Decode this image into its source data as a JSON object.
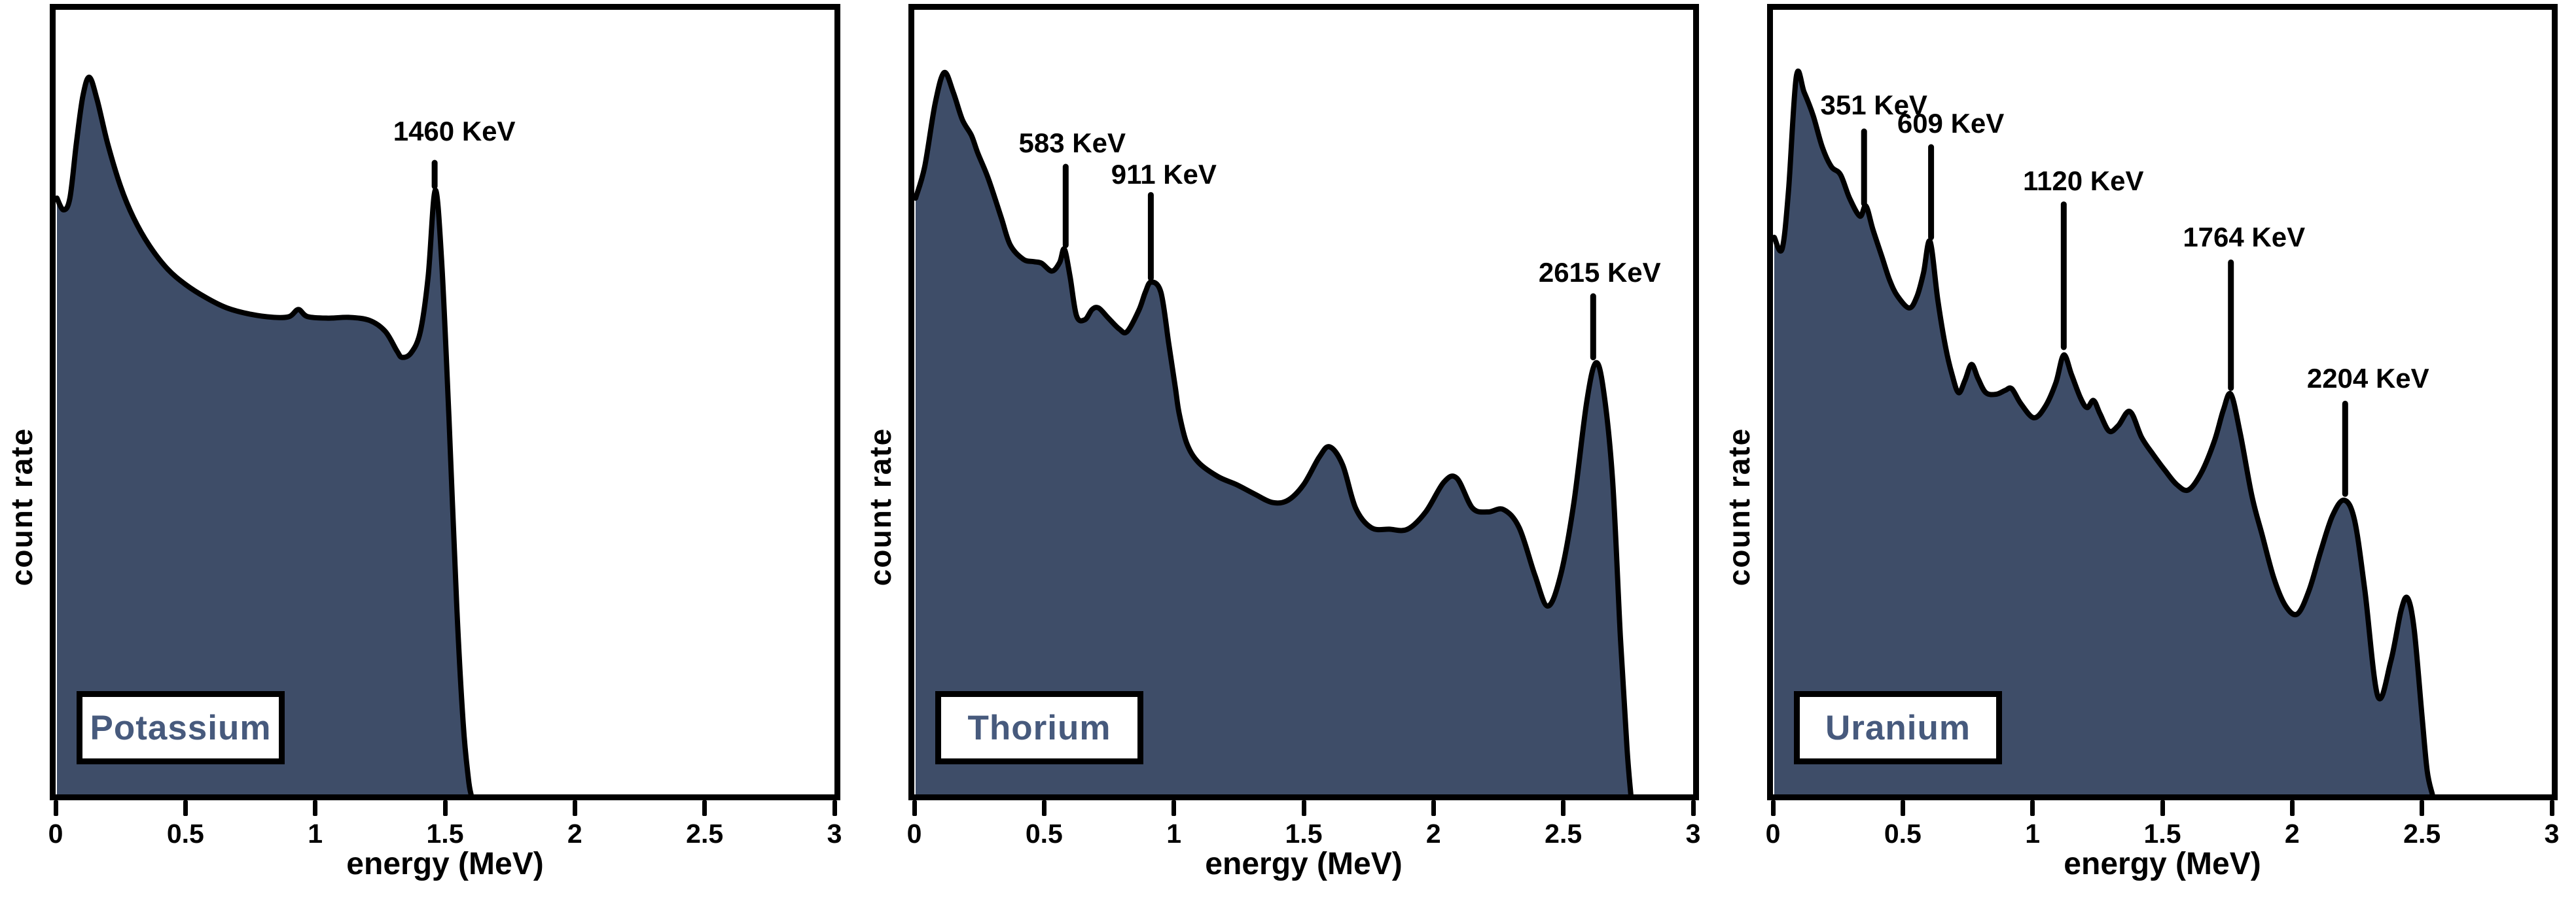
{
  "figure": {
    "colors": {
      "fill": "#3E4D68",
      "outline": "#000000",
      "legend_text": "#475A7D",
      "axis": "#000000"
    },
    "x_tick_labels": [
      "0",
      "0.5",
      "1",
      "1.5",
      "2",
      "2.5",
      "3"
    ],
    "x_tick_values": [
      0,
      0.5,
      1,
      1.5,
      2,
      2.5,
      3
    ]
  },
  "chart_data": [
    {
      "type": "area",
      "title": "Potassium",
      "xlabel": "energy (MeV)",
      "ylabel": "count rate",
      "xlim": [
        0,
        3
      ],
      "grid": false,
      "legend_position": "bottom-left",
      "y_units": "relative count rate (% of plot height, unlabeled axis)",
      "peaks": [
        {
          "label": "1460 KeV",
          "x": 1.46,
          "line_bottom": 77.5,
          "line_top": 80.5,
          "label_y": 84.5,
          "dx": 30
        }
      ],
      "points": [
        [
          0.005,
          76
        ],
        [
          0.03,
          74.5
        ],
        [
          0.055,
          76
        ],
        [
          0.08,
          83
        ],
        [
          0.105,
          89
        ],
        [
          0.13,
          91.4
        ],
        [
          0.16,
          88.5
        ],
        [
          0.2,
          83
        ],
        [
          0.25,
          77.5
        ],
        [
          0.3,
          73.5
        ],
        [
          0.36,
          70
        ],
        [
          0.43,
          67
        ],
        [
          0.5,
          65
        ],
        [
          0.58,
          63.3
        ],
        [
          0.66,
          62
        ],
        [
          0.75,
          61.2
        ],
        [
          0.84,
          60.8
        ],
        [
          0.9,
          60.9
        ],
        [
          0.935,
          61.8
        ],
        [
          0.97,
          60.9
        ],
        [
          1.05,
          60.7
        ],
        [
          1.13,
          60.8
        ],
        [
          1.21,
          60.4
        ],
        [
          1.27,
          59
        ],
        [
          1.315,
          56.5
        ],
        [
          1.335,
          55.7
        ],
        [
          1.37,
          56.3
        ],
        [
          1.405,
          59
        ],
        [
          1.435,
          66
        ],
        [
          1.462,
          77
        ],
        [
          1.487,
          68
        ],
        [
          1.515,
          48
        ],
        [
          1.545,
          24
        ],
        [
          1.57,
          9
        ],
        [
          1.59,
          2
        ],
        [
          1.6,
          0
        ]
      ]
    },
    {
      "type": "area",
      "title": "Thorium",
      "xlabel": "energy (MeV)",
      "ylabel": "count rate",
      "xlim": [
        0,
        3
      ],
      "grid": false,
      "legend_position": "bottom-left",
      "y_units": "relative count rate (% of plot height, unlabeled axis)",
      "peaks": [
        {
          "label": "583 KeV",
          "x": 0.583,
          "line_bottom": 70.0,
          "line_top": 80.0,
          "label_y": 83.0,
          "dx": 10
        },
        {
          "label": "911 KeV",
          "x": 0.911,
          "line_bottom": 65.8,
          "line_top": 76.4,
          "label_y": 79.0,
          "dx": 20
        },
        {
          "label": "2615 KeV",
          "x": 2.615,
          "line_bottom": 55.7,
          "line_top": 63.5,
          "label_y": 66.5,
          "dx": 10
        }
      ],
      "points": [
        [
          0.005,
          76
        ],
        [
          0.04,
          80
        ],
        [
          0.08,
          88
        ],
        [
          0.115,
          92
        ],
        [
          0.15,
          89.5
        ],
        [
          0.185,
          86
        ],
        [
          0.22,
          84
        ],
        [
          0.245,
          81.7
        ],
        [
          0.285,
          78.5
        ],
        [
          0.335,
          73.5
        ],
        [
          0.37,
          70
        ],
        [
          0.42,
          68.2
        ],
        [
          0.46,
          67.9
        ],
        [
          0.49,
          67.7
        ],
        [
          0.53,
          66.7
        ],
        [
          0.56,
          67.8
        ],
        [
          0.578,
          69.5
        ],
        [
          0.6,
          66
        ],
        [
          0.625,
          61
        ],
        [
          0.657,
          60.5
        ],
        [
          0.685,
          61.8
        ],
        [
          0.71,
          62
        ],
        [
          0.745,
          60.8
        ],
        [
          0.79,
          59.3
        ],
        [
          0.82,
          59
        ],
        [
          0.865,
          61.7
        ],
        [
          0.89,
          64
        ],
        [
          0.912,
          65.3
        ],
        [
          0.95,
          64
        ],
        [
          0.98,
          57.5
        ],
        [
          1.005,
          52
        ],
        [
          1.02,
          48.6
        ],
        [
          1.05,
          44.7
        ],
        [
          1.095,
          42.3
        ],
        [
          1.17,
          40.5
        ],
        [
          1.24,
          39.5
        ],
        [
          1.31,
          38.3
        ],
        [
          1.38,
          37.2
        ],
        [
          1.44,
          37.5
        ],
        [
          1.5,
          39.5
        ],
        [
          1.56,
          43
        ],
        [
          1.6,
          44.3
        ],
        [
          1.65,
          42
        ],
        [
          1.7,
          36.5
        ],
        [
          1.76,
          34
        ],
        [
          1.83,
          33.8
        ],
        [
          1.9,
          33.8
        ],
        [
          1.97,
          36
        ],
        [
          2.04,
          39.8
        ],
        [
          2.09,
          40.3
        ],
        [
          2.15,
          36.5
        ],
        [
          2.21,
          36
        ],
        [
          2.27,
          36.3
        ],
        [
          2.33,
          34
        ],
        [
          2.39,
          28
        ],
        [
          2.44,
          24
        ],
        [
          2.49,
          28
        ],
        [
          2.54,
          37
        ],
        [
          2.59,
          50
        ],
        [
          2.625,
          55
        ],
        [
          2.655,
          51.5
        ],
        [
          2.69,
          40
        ],
        [
          2.72,
          20
        ],
        [
          2.745,
          6
        ],
        [
          2.76,
          0
        ]
      ]
    },
    {
      "type": "area",
      "title": "Uranium",
      "xlabel": "energy (MeV)",
      "ylabel": "count rate",
      "xlim": [
        0,
        3
      ],
      "grid": false,
      "legend_position": "bottom-left",
      "y_units": "relative count rate (% of plot height, unlabeled axis)",
      "peaks": [
        {
          "label": "351 KeV",
          "x": 0.351,
          "line_bottom": 75.3,
          "line_top": 84.5,
          "label_y": 87.8,
          "dx": 15
        },
        {
          "label": "609 KeV",
          "x": 0.609,
          "line_bottom": 71.0,
          "line_top": 82.5,
          "label_y": 85.5,
          "dx": 30
        },
        {
          "label": "1120 KeV",
          "x": 1.12,
          "line_bottom": 57.0,
          "line_top": 75.2,
          "label_y": 78.2,
          "dx": 30
        },
        {
          "label": "1764 KeV",
          "x": 1.764,
          "line_bottom": 51.8,
          "line_top": 67.8,
          "label_y": 71.0,
          "dx": 20
        },
        {
          "label": "2204 KeV",
          "x": 2.204,
          "line_bottom": 38.3,
          "line_top": 49.8,
          "label_y": 53.0,
          "dx": 35
        }
      ],
      "points": [
        [
          0.005,
          71
        ],
        [
          0.035,
          69.5
        ],
        [
          0.06,
          77
        ],
        [
          0.09,
          91.5
        ],
        [
          0.12,
          89.5
        ],
        [
          0.155,
          86.5
        ],
        [
          0.19,
          82.5
        ],
        [
          0.225,
          80
        ],
        [
          0.26,
          79
        ],
        [
          0.295,
          76
        ],
        [
          0.335,
          73.7
        ],
        [
          0.358,
          75
        ],
        [
          0.385,
          72
        ],
        [
          0.42,
          68.5
        ],
        [
          0.45,
          65.5
        ],
        [
          0.48,
          63.5
        ],
        [
          0.525,
          62
        ],
        [
          0.555,
          63.5
        ],
        [
          0.58,
          66.5
        ],
        [
          0.605,
          70.5
        ],
        [
          0.635,
          63
        ],
        [
          0.665,
          57
        ],
        [
          0.69,
          53.5
        ],
        [
          0.715,
          51.2
        ],
        [
          0.74,
          52.8
        ],
        [
          0.765,
          54.8
        ],
        [
          0.79,
          53
        ],
        [
          0.82,
          51.2
        ],
        [
          0.86,
          51
        ],
        [
          0.895,
          51.5
        ],
        [
          0.92,
          51.7
        ],
        [
          0.955,
          49.8
        ],
        [
          1.005,
          48
        ],
        [
          1.05,
          49.5
        ],
        [
          1.09,
          52.5
        ],
        [
          1.12,
          56
        ],
        [
          1.15,
          53.5
        ],
        [
          1.185,
          50.5
        ],
        [
          1.21,
          49.3
        ],
        [
          1.235,
          50.2
        ],
        [
          1.26,
          48.5
        ],
        [
          1.295,
          46.3
        ],
        [
          1.33,
          47
        ],
        [
          1.375,
          48.8
        ],
        [
          1.42,
          45.5
        ],
        [
          1.465,
          43.3
        ],
        [
          1.51,
          41.3
        ],
        [
          1.555,
          39.5
        ],
        [
          1.6,
          38.8
        ],
        [
          1.65,
          41
        ],
        [
          1.7,
          45
        ],
        [
          1.735,
          49
        ],
        [
          1.764,
          51
        ],
        [
          1.8,
          46
        ],
        [
          1.845,
          38
        ],
        [
          1.885,
          33
        ],
        [
          1.93,
          27.5
        ],
        [
          1.975,
          24
        ],
        [
          2.02,
          23
        ],
        [
          2.065,
          26
        ],
        [
          2.11,
          31
        ],
        [
          2.155,
          35.5
        ],
        [
          2.2,
          37.5
        ],
        [
          2.24,
          35
        ],
        [
          2.28,
          26
        ],
        [
          2.33,
          12.5
        ],
        [
          2.38,
          17
        ],
        [
          2.42,
          23.5
        ],
        [
          2.445,
          25
        ],
        [
          2.47,
          21
        ],
        [
          2.5,
          10
        ],
        [
          2.52,
          3
        ],
        [
          2.54,
          0
        ]
      ]
    }
  ]
}
